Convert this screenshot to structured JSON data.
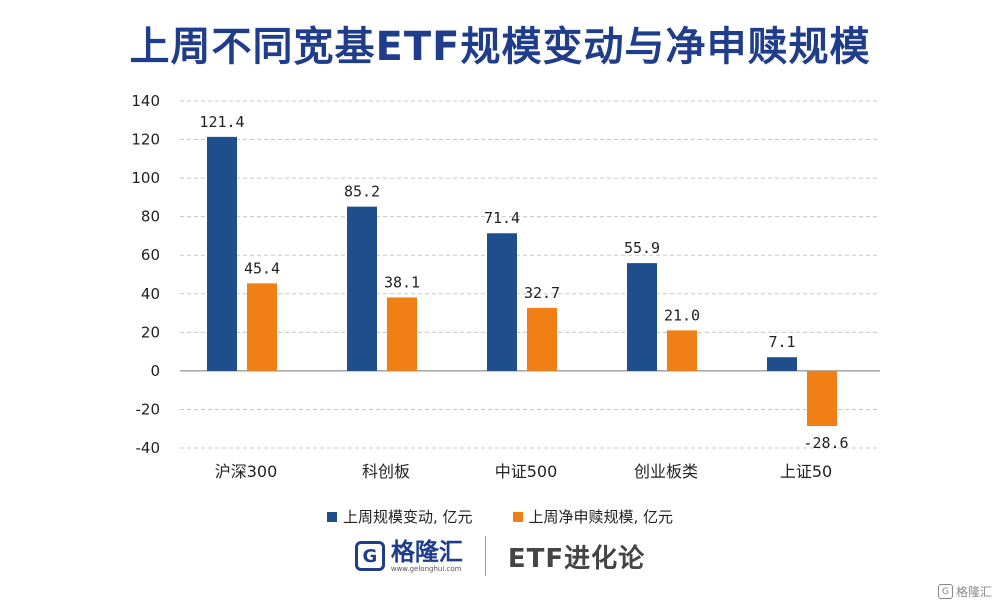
{
  "title": "上周不同宽基ETF规模变动与净申赎规模",
  "chart_data": {
    "type": "bar",
    "categories": [
      "沪深300",
      "科创板",
      "中证500",
      "创业板类",
      "上证50"
    ],
    "series": [
      {
        "name": "上周规模变动, 亿元",
        "values": [
          121.4,
          85.2,
          71.4,
          55.9,
          7.1
        ],
        "color": "#1f4e8c"
      },
      {
        "name": "上周净申赎规模, 亿元",
        "values": [
          45.4,
          38.1,
          32.7,
          21.0,
          -28.6
        ],
        "color": "#f07f16"
      }
    ],
    "value_labels": [
      [
        "121.4",
        "85.2",
        "71.4",
        "55.9",
        "7.1"
      ],
      [
        "45.4",
        "38.1",
        "32.7",
        "21.0",
        "-28.6"
      ]
    ],
    "ylim": [
      -40,
      140
    ],
    "yticks": [
      140,
      120,
      100,
      80,
      60,
      40,
      20,
      0,
      -20,
      -40
    ],
    "grid": true,
    "legend_position": "bottom"
  },
  "legend": {
    "item1": "上周规模变动, 亿元",
    "item2": "上周净申赎规模, 亿元"
  },
  "brand": {
    "logo_glyph": "G",
    "logo_name": "格隆汇",
    "logo_url": "www.gelonghui.com",
    "column": "ETF进化论"
  },
  "watermark": {
    "glyph": "G",
    "text": "格隆汇"
  }
}
